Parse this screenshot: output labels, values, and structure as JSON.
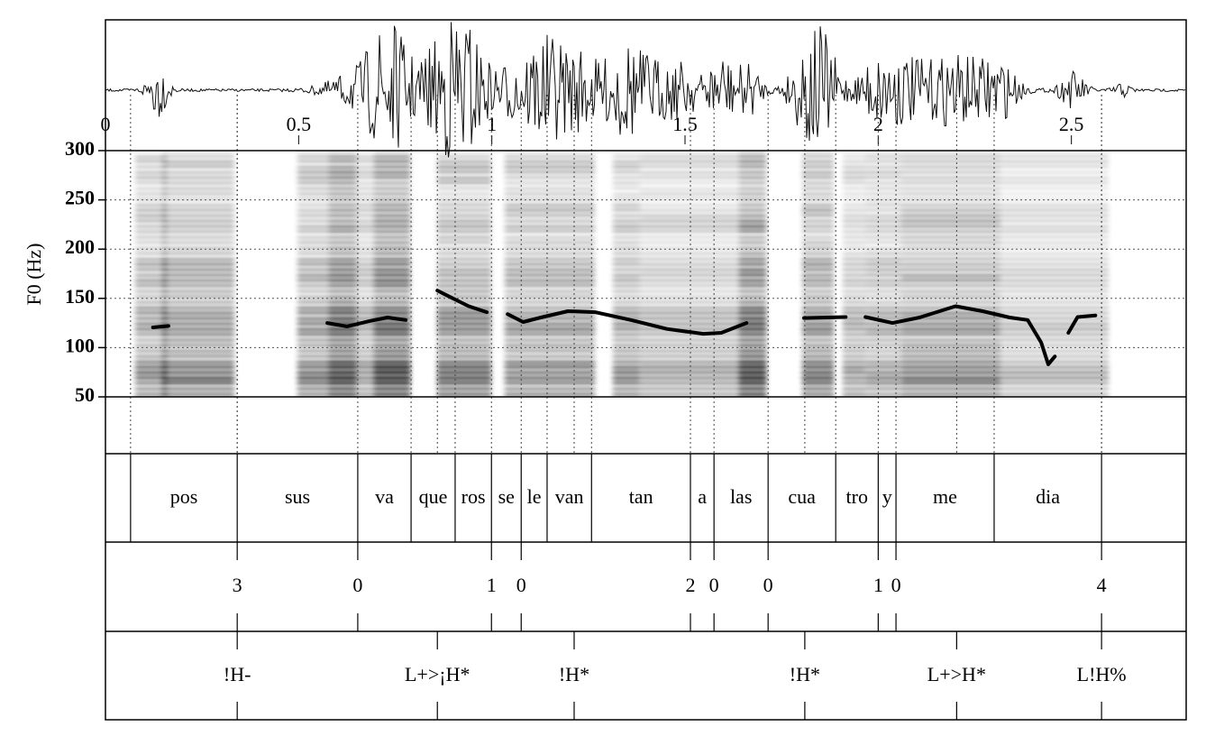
{
  "chart_data": {
    "type": "line",
    "y_label": "F0 (Hz)",
    "xlim": [
      0,
      2.797
    ],
    "xticks": [
      0,
      0.5,
      1,
      1.5,
      2,
      2.5
    ],
    "ylim": [
      50,
      300
    ],
    "yticks": [
      50,
      100,
      150,
      200,
      250,
      300
    ],
    "grid": true,
    "color": "#000000",
    "x": [
      0.123,
      0.163,
      null,
      0.574,
      0.625,
      0.684,
      0.73,
      0.777,
      null,
      0.859,
      0.894,
      0.94,
      0.987,
      null,
      1.041,
      1.081,
      1.127,
      1.197,
      1.267,
      1.36,
      1.453,
      1.547,
      1.594,
      1.659,
      null,
      1.808,
      1.916,
      null,
      1.967,
      2.037,
      2.107,
      2.2,
      2.27,
      2.34,
      2.387,
      2.422,
      2.44,
      2.457,
      null,
      2.492,
      2.516,
      2.562
    ],
    "values": [
      120.5,
      122,
      null,
      125,
      121.5,
      127,
      130.6,
      128,
      null,
      158,
      151,
      142,
      136,
      null,
      134,
      126,
      130.6,
      137,
      136,
      128,
      119,
      114,
      115,
      125,
      null,
      130,
      131,
      null,
      131,
      125,
      130.6,
      142,
      137,
      130.6,
      128,
      105,
      83,
      91,
      null,
      115,
      131,
      132.6
    ],
    "tiers": [
      {
        "boundaries": [
          0.065,
          0.341,
          0.653,
          0.791,
          0.905,
          0.999,
          1.076,
          1.143,
          1.258,
          1.514,
          1.575,
          1.715,
          1.89,
          2.0,
          2.046,
          2.3,
          2.578
        ],
        "labels": [
          "pos",
          "sus",
          "va",
          "que",
          "ros",
          "se",
          "le",
          "van",
          "tan",
          "a",
          "las",
          "cua",
          "tro",
          "y",
          "me",
          "dia"
        ]
      },
      {
        "points": [
          0.341,
          0.653,
          0.999,
          1.076,
          1.514,
          1.575,
          1.715,
          2.0,
          2.046,
          2.578
        ],
        "labels": [
          "3",
          "0",
          "1",
          "0",
          "2",
          "0",
          "0",
          "1",
          "0",
          "4"
        ]
      },
      {
        "points": [
          0.341,
          0.859,
          1.213,
          1.81,
          2.203,
          2.578
        ],
        "labels": [
          "!H-",
          "L+>¡H*",
          "!H*",
          "!H*",
          "L+>H*",
          "L!H%"
        ]
      }
    ]
  }
}
